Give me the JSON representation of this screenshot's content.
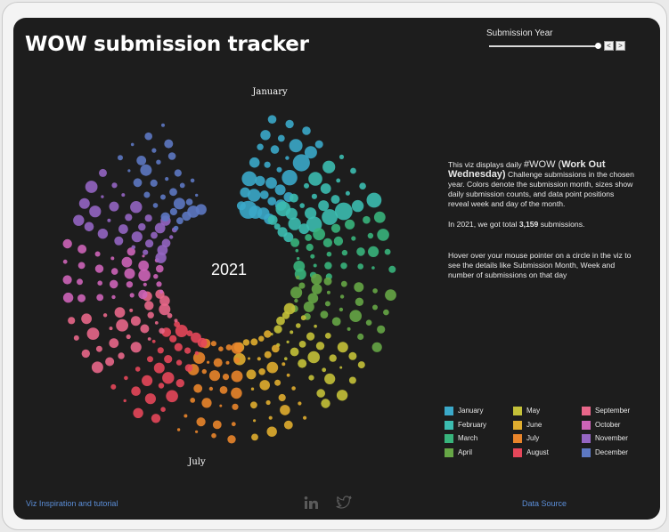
{
  "dashboard": {
    "title": "WOW submission tracker",
    "filter": {
      "label": "Submission Year",
      "value": "2021",
      "prev_symbol": "<",
      "next_symbol": ">"
    },
    "center_label": "2021",
    "description": {
      "intro_pre": "This viz displays daily ",
      "intro_tag": "#WOW",
      "intro_open": " (",
      "intro_bold": "Work Out Wednesday)",
      "intro_post": " Challenge submissions in the chosen year. Colors denote the submission month, sizes show daily submission counts, and data point positions reveal week and day of the month.",
      "total_pre": "In  ",
      "total_year": "2021",
      "total_mid": ", we got total ",
      "total_value": "3,159",
      "total_post": "  submissions.",
      "hover_hint": "Hover over your mouse pointer on a circle in the viz to see the details like Submission Month, Week and number of submissions on that day"
    },
    "footer": {
      "left_link": "Viz Inspiration and tutorial",
      "right_link": "Data Source",
      "icons": [
        "linkedin-icon",
        "twitter-icon"
      ]
    },
    "colors": {
      "background": "#1d1d1d",
      "link": "#5b8ed8"
    }
  },
  "chart_data": {
    "type": "scatter",
    "layout": "radial",
    "title": "",
    "year": 2021,
    "total_submissions": 3159,
    "month_labels_shown": [
      "January",
      "July"
    ],
    "legend_placement": "bottom-right",
    "legend": [
      {
        "month": "January",
        "color": "#3ba9c9"
      },
      {
        "month": "February",
        "color": "#3cbcb0"
      },
      {
        "month": "March",
        "color": "#38b47c"
      },
      {
        "month": "April",
        "color": "#66a646"
      },
      {
        "month": "May",
        "color": "#c4c139"
      },
      {
        "month": "June",
        "color": "#e0ad2f"
      },
      {
        "month": "July",
        "color": "#e9852b"
      },
      {
        "month": "August",
        "color": "#e5475a"
      },
      {
        "month": "September",
        "color": "#e8678a"
      },
      {
        "month": "October",
        "color": "#cd64b8"
      },
      {
        "month": "November",
        "color": "#9465c2"
      },
      {
        "month": "December",
        "color": "#5d78c2"
      }
    ]
  }
}
